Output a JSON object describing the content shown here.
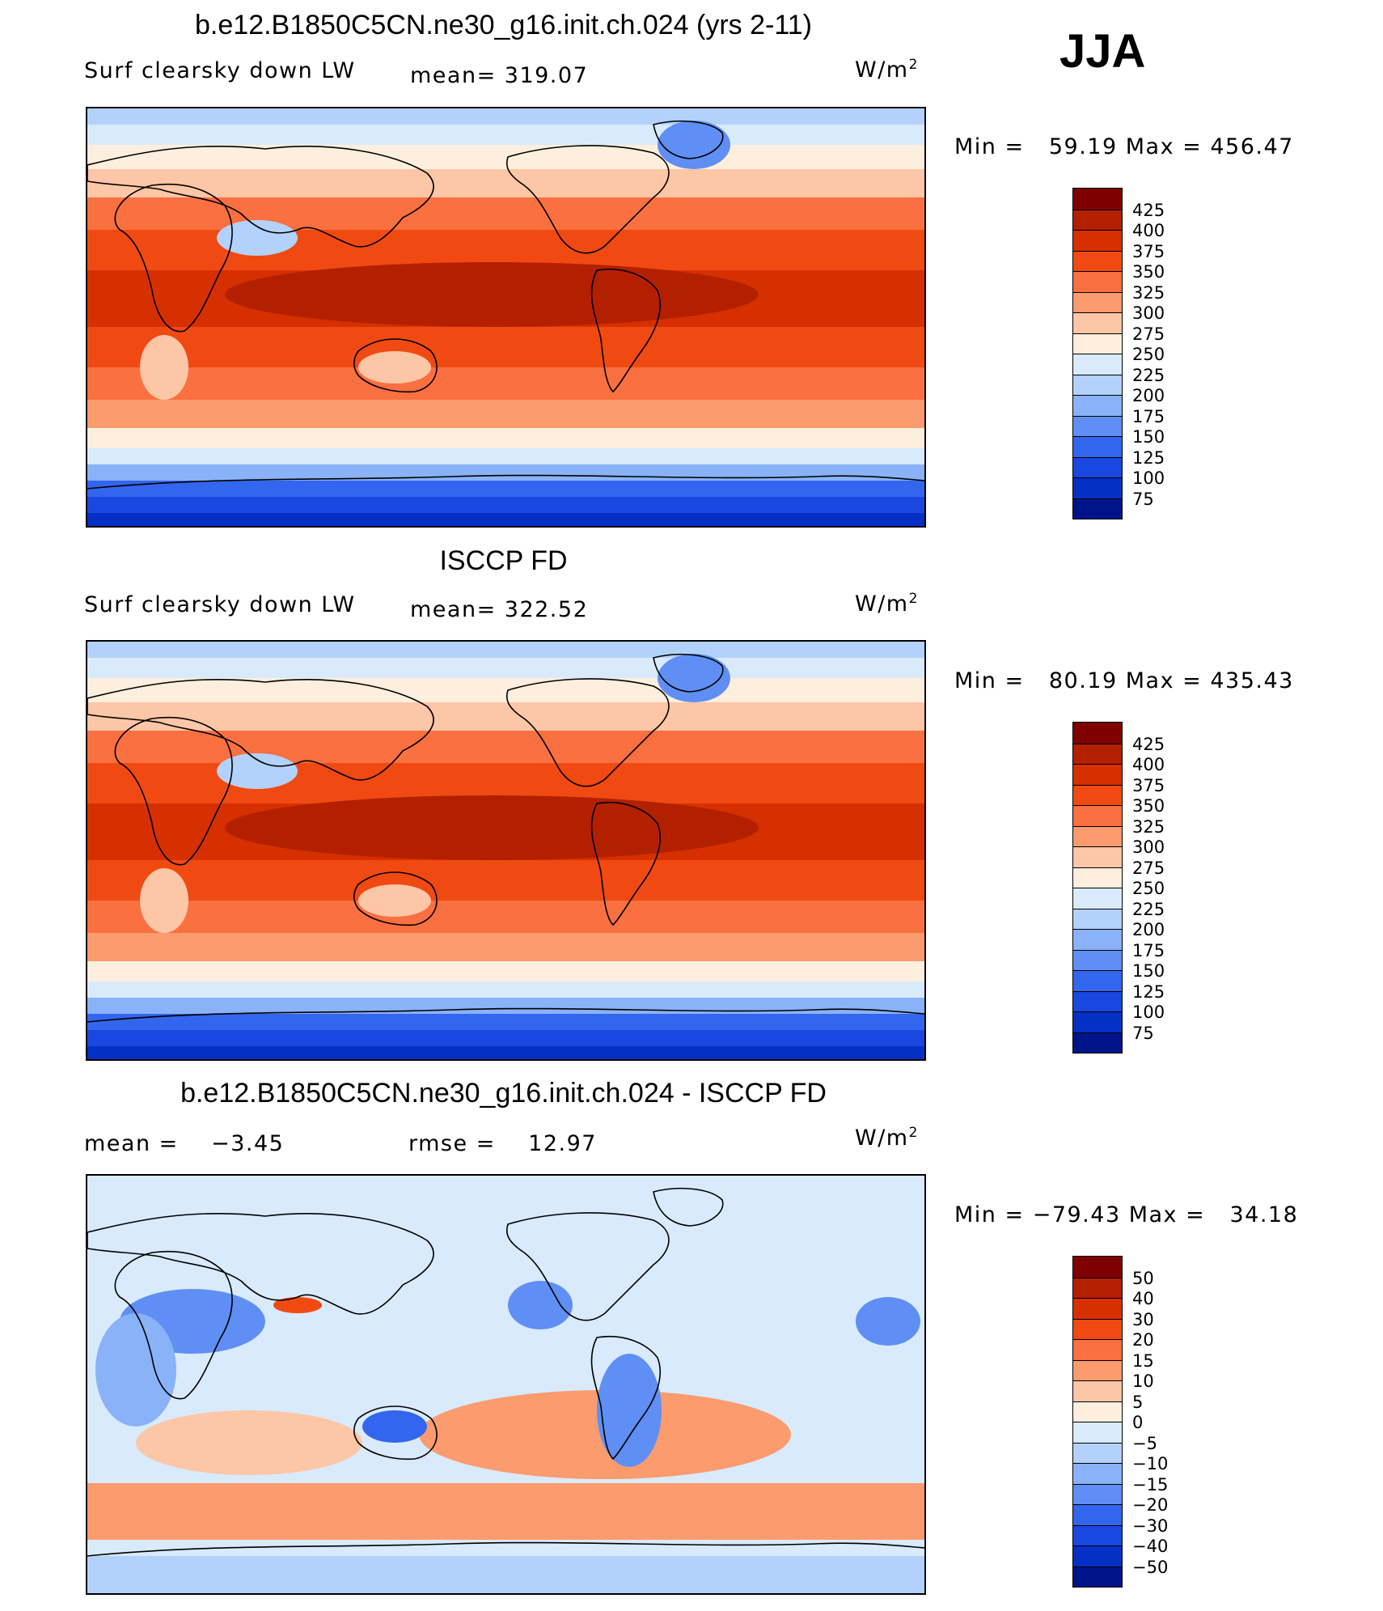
{
  "season": "JJA",
  "chart_data": [
    {
      "type": "heatmap",
      "title": "b.e12.B1850C5CN.ne30_g16.init.ch.024 (yrs 2-11)",
      "variable": "Surf clearsky down LW",
      "stat_text": "mean= 319.07",
      "mean": 319.07,
      "units_base": "W/m",
      "units_sup": "2",
      "minmax_text": "Min =   59.19 Max = 456.47",
      "min": 59.19,
      "max": 456.47,
      "levels": [
        "425",
        "400",
        "375",
        "350",
        "325",
        "300",
        "275",
        "250",
        "225",
        "200",
        "175",
        "150",
        "125",
        "100",
        "75"
      ],
      "colors": [
        "#7f0000",
        "#b22000",
        "#d63000",
        "#f04a12",
        "#fa7040",
        "#fc9b6e",
        "#fdc6a6",
        "#fdeedd",
        "#d9eafc",
        "#b3d2fb",
        "#89b2f8",
        "#5f8ff4",
        "#3366ee",
        "#1a47e0",
        "#0530c6",
        "#00148a"
      ]
    },
    {
      "type": "heatmap",
      "title": "ISCCP FD",
      "variable": "Surf clearsky down LW",
      "stat_text": "mean= 322.52",
      "mean": 322.52,
      "units_base": "W/m",
      "units_sup": "2",
      "minmax_text": "Min =   80.19 Max = 435.43",
      "min": 80.19,
      "max": 435.43,
      "levels": [
        "425",
        "400",
        "375",
        "350",
        "325",
        "300",
        "275",
        "250",
        "225",
        "200",
        "175",
        "150",
        "125",
        "100",
        "75"
      ],
      "colors": [
        "#7f0000",
        "#b22000",
        "#d63000",
        "#f04a12",
        "#fa7040",
        "#fc9b6e",
        "#fdc6a6",
        "#fdeedd",
        "#d9eafc",
        "#b3d2fb",
        "#89b2f8",
        "#5f8ff4",
        "#3366ee",
        "#1a47e0",
        "#0530c6",
        "#00148a"
      ]
    },
    {
      "type": "heatmap",
      "title": "b.e12.B1850C5CN.ne30_g16.init.ch.024 - ISCCP FD",
      "stat_text": "mean =    −3.45",
      "mean": -3.45,
      "rmse_text": "rmse =    12.97",
      "rmse": 12.97,
      "units_base": "W/m",
      "units_sup": "2",
      "minmax_text": "Min = −79.43 Max =   34.18",
      "min": -79.43,
      "max": 34.18,
      "levels": [
        "50",
        "40",
        "30",
        "20",
        "15",
        "10",
        "5",
        "0",
        "−5",
        "−10",
        "−15",
        "−20",
        "−30",
        "−40",
        "−50"
      ],
      "colors": [
        "#7f0000",
        "#b22000",
        "#d63000",
        "#f04a12",
        "#fa7040",
        "#fc9b6e",
        "#fdc6a6",
        "#fdeedd",
        "#d9eafc",
        "#b3d2fb",
        "#89b2f8",
        "#5f8ff4",
        "#3366ee",
        "#1a47e0",
        "#0530c6",
        "#00148a"
      ]
    }
  ]
}
